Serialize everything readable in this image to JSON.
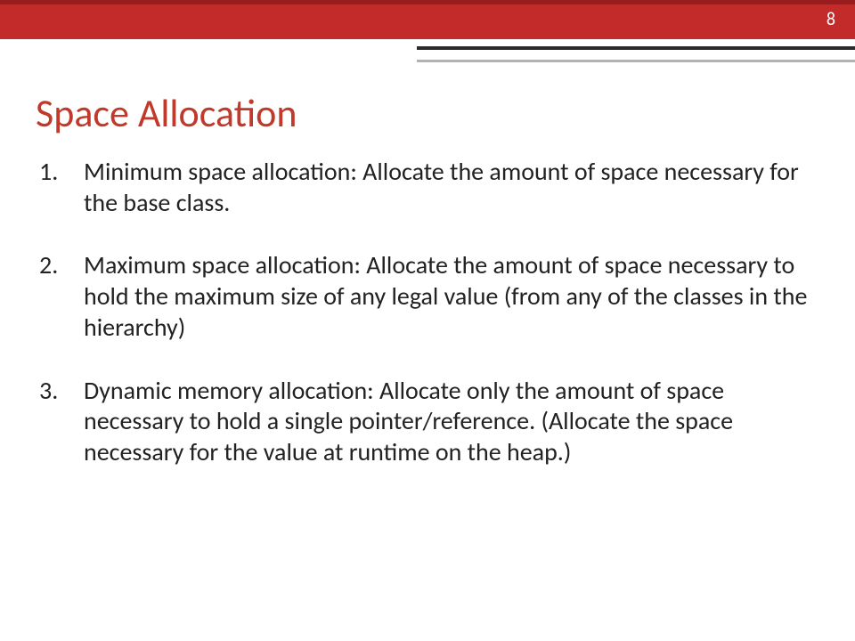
{
  "page_number": "8",
  "title": "Space Allocation",
  "colors": {
    "header_bg": "#c32b2b",
    "header_top": "#9a1c1c",
    "title_color": "#c0392b",
    "body_text": "#222222",
    "underline_dark": "#2b2b2b",
    "underline_light": "#b2b2b2",
    "page_bg": "#ffffff",
    "page_number_color": "#ffffff"
  },
  "typography": {
    "title_fontsize": 44,
    "body_fontsize": 28,
    "page_number_fontsize": 20,
    "font_family": "Calibri"
  },
  "items": [
    {
      "n": "1.",
      "text": "Minimum space allocation: Allocate the amount of space necessary for the base class."
    },
    {
      "n": "2.",
      "text": "Maximum space allocation: Allocate the amount of space necessary to hold the maximum size of any legal value (from any of the classes in the hierarchy)"
    },
    {
      "n": "3.",
      "text": "Dynamic memory allocation: Allocate only the amount of space necessary to hold a single pointer/reference. (Allocate  the space necessary for the value at runtime on the heap.)"
    }
  ]
}
